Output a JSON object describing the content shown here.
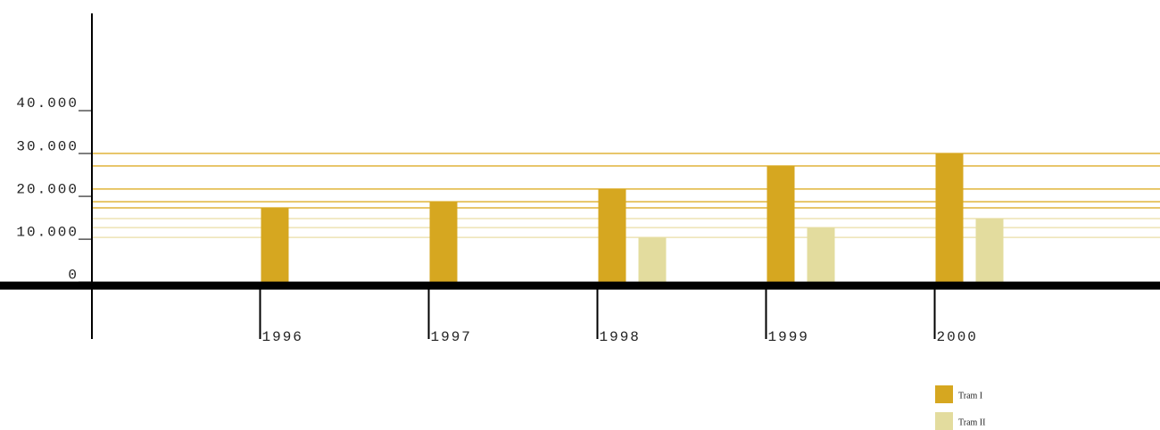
{
  "chart_data": {
    "type": "bar",
    "categories": [
      "1996",
      "1997",
      "1998",
      "1999",
      "2000"
    ],
    "series": [
      {
        "name": "Tram I",
        "color": "#d6a720",
        "line_color": "#e0b43a",
        "values": [
          17300,
          18750,
          21700,
          27100,
          30000
        ]
      },
      {
        "name": "Tram II",
        "color": "#e3dc9e",
        "line_color": "#ede3b4",
        "values": [
          null,
          null,
          10400,
          12700,
          14800
        ]
      }
    ],
    "ylim": [
      -13300,
      62700
    ],
    "yticks": [
      0,
      {
        "value": 10000,
        "label": "10.000"
      },
      {
        "value": 20000,
        "label": "20.000"
      },
      {
        "value": 30000,
        "label": "30.000"
      },
      {
        "value": 40000,
        "label": "40.000"
      }
    ]
  }
}
